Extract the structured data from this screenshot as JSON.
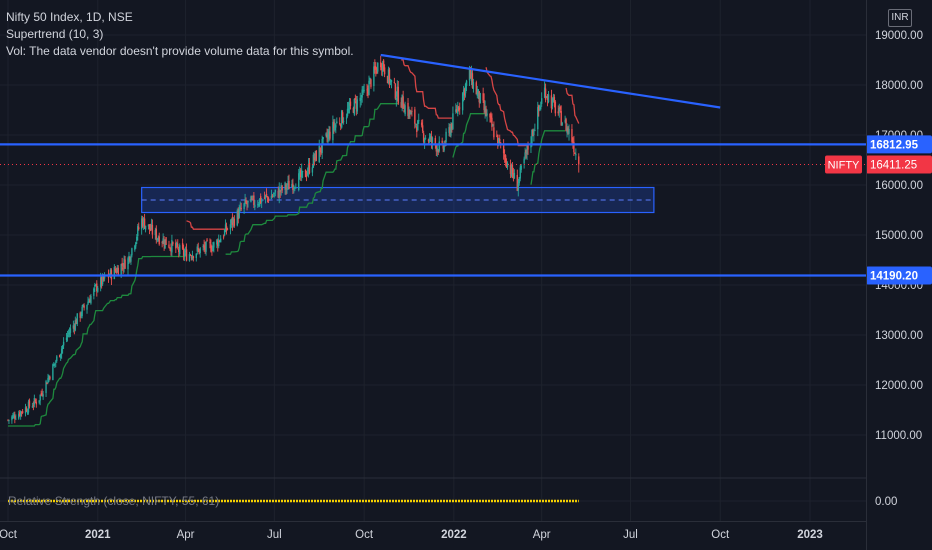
{
  "legend": {
    "title": "Nifty 50 Index, 1D, NSE",
    "indicator": "Supertrend (10, 3)",
    "volume_note": "Vol: The data vendor doesn't provide volume data for this symbol."
  },
  "currency": "INR",
  "colors": {
    "background": "#131722",
    "grid": "#1e222d",
    "axis_text": "#d1d4dc",
    "up_candle": "#26a69a",
    "down_candle": "#ef5350",
    "supertrend_up": "#1e8a3e",
    "supertrend_down": "#d64545",
    "drawing_line": "#2962ff",
    "price_label": "#f23645",
    "rs_line": "#f5d000"
  },
  "chart_data": {
    "type": "candlestick",
    "symbol_tag": "NIFTY",
    "last_price_label": "16411.25",
    "horizontal_levels": [
      {
        "value": 16812.95,
        "label": "16812.95"
      },
      {
        "value": 14190.2,
        "label": "14190.20"
      }
    ],
    "y_ticks": [
      "19000.00",
      "18000.00",
      "17000.00",
      "16000.00",
      "15000.00",
      "14000.00",
      "13000.00",
      "12000.00",
      "11000.00"
    ],
    "y_tick_values": [
      19000,
      18000,
      17000,
      16000,
      15000,
      14000,
      13000,
      12000,
      11000
    ],
    "ylim": [
      10700,
      19500
    ],
    "x_ticks": [
      "Oct",
      "2021",
      "Apr",
      "Jul",
      "Oct",
      "2022",
      "Apr",
      "Jul",
      "Oct",
      "2023"
    ],
    "x_tick_dates": [
      "2020-10-01",
      "2021-01-01",
      "2021-04-01",
      "2021-07-01",
      "2021-10-01",
      "2022-01-01",
      "2022-04-01",
      "2022-07-01",
      "2022-10-01",
      "2023-01-01"
    ],
    "price_path": [
      [
        "2020-10-01",
        11300
      ],
      [
        "2020-11-01",
        11700
      ],
      [
        "2020-12-01",
        13000
      ],
      [
        "2021-01-01",
        14000
      ],
      [
        "2021-02-01",
        14500
      ],
      [
        "2021-02-15",
        15300
      ],
      [
        "2021-03-01",
        15000
      ],
      [
        "2021-04-01",
        14600
      ],
      [
        "2021-05-01",
        14800
      ],
      [
        "2021-06-01",
        15600
      ],
      [
        "2021-07-01",
        15800
      ],
      [
        "2021-08-01",
        16200
      ],
      [
        "2021-09-01",
        17200
      ],
      [
        "2021-10-01",
        17800
      ],
      [
        "2021-10-18",
        18500
      ],
      [
        "2021-11-01",
        17900
      ],
      [
        "2021-12-01",
        17000
      ],
      [
        "2021-12-20",
        16700
      ],
      [
        "2022-01-17",
        18200
      ],
      [
        "2022-02-01",
        17500
      ],
      [
        "2022-03-07",
        16000
      ],
      [
        "2022-04-04",
        17900
      ],
      [
        "2022-05-01",
        17000
      ],
      [
        "2022-05-09",
        16411
      ]
    ],
    "trend_line": {
      "from": [
        "2021-10-18",
        18600
      ],
      "to": [
        "2022-10-01",
        17550
      ]
    },
    "consolidation_zone": {
      "from": "2021-02-15",
      "to": "2022-07-25",
      "low": 15450,
      "high": 15950,
      "mid": 15700
    },
    "rs_indicator": {
      "label": "Relative Strength (close, NIFTY, 55, 61)",
      "value_label": "0.00",
      "from": "2020-10-01",
      "to": "2022-05-09"
    }
  }
}
